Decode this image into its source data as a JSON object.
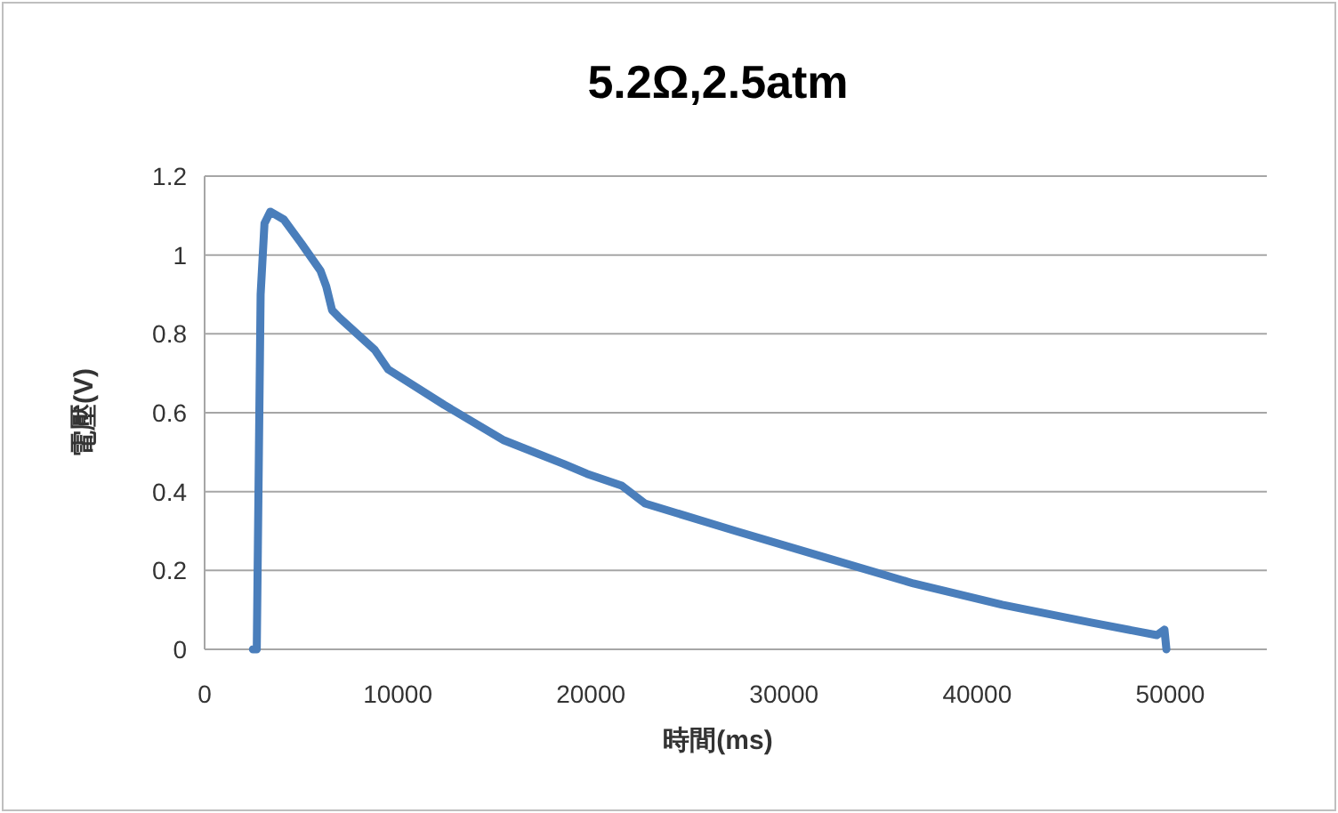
{
  "chart_data": {
    "type": "line",
    "title": "5.2Ω,2.5atm",
    "xlabel": "時間(ms)",
    "ylabel": "電壓(V)",
    "xlim": [
      0,
      55000
    ],
    "xticks": [
      0,
      10000,
      20000,
      30000,
      40000,
      50000
    ],
    "ylim": [
      0,
      1.2
    ],
    "yticks": [
      0,
      0.2,
      0.4,
      0.6,
      0.8,
      1,
      1.2
    ],
    "grid": "y",
    "marker": "none",
    "line_style": "solid",
    "series": [
      {
        "color": "#4a7ebb",
        "x": [
          2500,
          2700,
          2900,
          3100,
          3400,
          4100,
          5000,
          6000,
          6300,
          6600,
          7000,
          8800,
          9500,
          12400,
          15500,
          18600,
          19800,
          21600,
          22800,
          27500,
          32000,
          36700,
          41300,
          45900,
          49300,
          49700,
          49800
        ],
        "values": [
          0,
          0,
          0.9,
          1.08,
          1.11,
          1.09,
          1.03,
          0.96,
          0.92,
          0.86,
          0.84,
          0.76,
          0.71,
          0.62,
          0.53,
          0.47,
          0.445,
          0.415,
          0.37,
          0.3,
          0.235,
          0.167,
          0.113,
          0.068,
          0.036,
          0.05,
          0
        ]
      }
    ]
  }
}
